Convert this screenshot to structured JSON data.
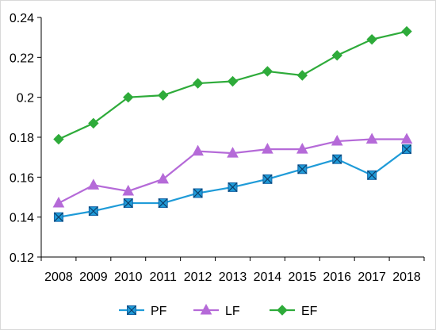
{
  "chart_data": {
    "type": "line",
    "categories": [
      "2008",
      "2009",
      "2010",
      "2011",
      "2012",
      "2013",
      "2014",
      "2015",
      "2016",
      "2017",
      "2018"
    ],
    "ylim": [
      0.12,
      0.24
    ],
    "yticks": [
      0.12,
      0.14,
      0.16,
      0.18,
      0.2,
      0.22,
      0.24
    ],
    "ytick_labels": [
      "0.12",
      "0.14",
      "0.16",
      "0.18",
      "0.2",
      "0.22",
      "0.24"
    ],
    "grid": false,
    "legend_position": "bottom",
    "series": [
      {
        "name": "PF",
        "color": "#1f9bd8",
        "marker": "square-x",
        "values": [
          0.14,
          0.143,
          0.147,
          0.147,
          0.152,
          0.155,
          0.159,
          0.164,
          0.169,
          0.161,
          0.174
        ]
      },
      {
        "name": "LF",
        "color": "#b56ad8",
        "marker": "triangle",
        "values": [
          0.147,
          0.156,
          0.153,
          0.159,
          0.173,
          0.172,
          0.174,
          0.174,
          0.178,
          0.179,
          0.179
        ]
      },
      {
        "name": "EF",
        "color": "#2eab3a",
        "marker": "diamond",
        "values": [
          0.179,
          0.187,
          0.2,
          0.201,
          0.207,
          0.208,
          0.213,
          0.211,
          0.221,
          0.229,
          0.233
        ]
      }
    ]
  }
}
